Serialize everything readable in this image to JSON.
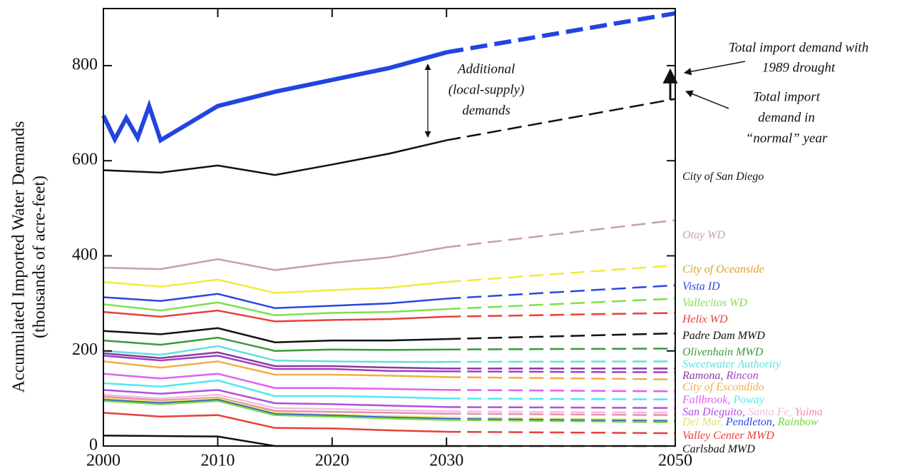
{
  "chart_data": {
    "type": "line",
    "y_label": [
      "Accumulated Imported Water Demands",
      "(thousands of acre-feet)"
    ],
    "xlim": [
      2000,
      2050
    ],
    "ylim": [
      0,
      920
    ],
    "xticks": [
      2000,
      2010,
      2020,
      2030,
      2050
    ],
    "yticks": [
      0,
      200,
      400,
      600,
      800
    ],
    "forecast_from": 2030,
    "name_separator": ", ",
    "annotations": {
      "additional": [
        "Additional",
        "(local-supply)",
        "demands"
      ],
      "drought": [
        "Total import demand with",
        "1989 drought"
      ],
      "normal": [
        "Total import",
        "demand in",
        "“normal” year"
      ]
    },
    "series": [
      {
        "color": "#2244e0",
        "width": 6,
        "x": [
          2000,
          2001,
          2002,
          2003,
          2004,
          2005,
          2010,
          2015,
          2020,
          2025,
          2030,
          2050
        ],
        "values": [
          695,
          645,
          690,
          648,
          715,
          643,
          715,
          745,
          770,
          795,
          828,
          910
        ]
      },
      {
        "name": "City of San Diego",
        "color": "#111111",
        "x": [
          2000,
          2005,
          2010,
          2015,
          2020,
          2025,
          2030,
          2050
        ],
        "values": [
          580,
          575,
          590,
          570,
          592,
          615,
          643,
          730
        ]
      },
      {
        "name": "Otay WD",
        "color": "#c9a0a0",
        "x": [
          2000,
          2005,
          2010,
          2015,
          2020,
          2025,
          2030,
          2050
        ],
        "values": [
          375,
          372,
          393,
          370,
          385,
          397,
          418,
          475
        ]
      },
      {
        "name": "City of Oceanside",
        "color": "#f2e93a",
        "labelColor": "#e0a020",
        "x": [
          2000,
          2005,
          2010,
          2015,
          2020,
          2025,
          2030,
          2050
        ],
        "values": [
          345,
          335,
          350,
          322,
          328,
          333,
          345,
          380
        ]
      },
      {
        "name": "Vista ID",
        "color": "#2a48e0",
        "x": [
          2000,
          2005,
          2010,
          2015,
          2020,
          2025,
          2030,
          2050
        ],
        "values": [
          313,
          305,
          320,
          290,
          295,
          300,
          310,
          338
        ]
      },
      {
        "name": "Vallecitos WD",
        "color": "#7de04a",
        "x": [
          2000,
          2005,
          2010,
          2015,
          2020,
          2025,
          2030,
          2050
        ],
        "values": [
          298,
          285,
          302,
          275,
          280,
          282,
          288,
          310
        ]
      },
      {
        "name": "Helix WD",
        "color": "#e8403a",
        "x": [
          2000,
          2005,
          2010,
          2015,
          2020,
          2025,
          2030,
          2050
        ],
        "values": [
          282,
          272,
          285,
          262,
          265,
          267,
          272,
          280
        ]
      },
      {
        "name": "Padre Dam MWD",
        "color": "#111111",
        "x": [
          2000,
          2005,
          2010,
          2015,
          2020,
          2025,
          2030,
          2050
        ],
        "values": [
          242,
          235,
          248,
          218,
          222,
          222,
          225,
          237
        ]
      },
      {
        "name": "Olivenhain MWD",
        "color": "#3a9a3a",
        "x": [
          2000,
          2005,
          2010,
          2015,
          2020,
          2025,
          2030,
          2050
        ],
        "values": [
          222,
          213,
          228,
          200,
          203,
          202,
          203,
          205
        ]
      },
      {
        "name": "Sweetwater Authority",
        "color": "#60e0e0",
        "x": [
          2000,
          2005,
          2010,
          2015,
          2020,
          2025,
          2030,
          2050
        ],
        "values": [
          200,
          192,
          210,
          180,
          178,
          177,
          177,
          178
        ]
      },
      {
        "name": "Ramona",
        "color": "#8a3aa0",
        "x": [
          2000,
          2005,
          2010,
          2015,
          2020,
          2025,
          2030,
          2050
        ],
        "values": [
          195,
          185,
          197,
          168,
          168,
          165,
          163,
          163
        ]
      },
      {
        "name": "Rincon",
        "color": "#a040c0",
        "x": [
          2000,
          2005,
          2010,
          2015,
          2020,
          2025,
          2030,
          2050
        ],
        "values": [
          190,
          180,
          190,
          162,
          162,
          158,
          157,
          155
        ]
      },
      {
        "name": "City of Escondido",
        "color": "#f0b040",
        "x": [
          2000,
          2005,
          2010,
          2015,
          2020,
          2025,
          2030,
          2050
        ],
        "values": [
          178,
          165,
          178,
          150,
          150,
          148,
          145,
          140
        ]
      },
      {
        "name": "Fallbrook",
        "color": "#e060f0",
        "x": [
          2000,
          2005,
          2010,
          2015,
          2020,
          2025,
          2030,
          2050
        ],
        "values": [
          152,
          142,
          152,
          122,
          122,
          120,
          118,
          115
        ]
      },
      {
        "name": "Poway",
        "color": "#50e8f0",
        "x": [
          2000,
          2005,
          2010,
          2015,
          2020,
          2025,
          2030,
          2050
        ],
        "values": [
          132,
          125,
          138,
          105,
          105,
          103,
          100,
          98
        ]
      },
      {
        "name": "San Dieguito",
        "color": "#b050e0",
        "x": [
          2000,
          2005,
          2010,
          2015,
          2020,
          2025,
          2030,
          2050
        ],
        "values": [
          118,
          110,
          118,
          90,
          88,
          85,
          82,
          80
        ]
      },
      {
        "name": "Santa Fe",
        "color": "#f0c0e0",
        "x": [
          2000,
          2005,
          2010,
          2015,
          2020,
          2025,
          2030,
          2050
        ],
        "values": [
          108,
          100,
          108,
          80,
          78,
          75,
          73,
          70
        ]
      },
      {
        "name": "Yuima",
        "color": "#e890b0",
        "x": [
          2000,
          2005,
          2010,
          2015,
          2020,
          2025,
          2030,
          2050
        ],
        "values": [
          104,
          96,
          102,
          74,
          72,
          70,
          68,
          65
        ]
      },
      {
        "name": "Del Mar",
        "color": "#e8e070",
        "x": [
          2000,
          2005,
          2010,
          2015,
          2020,
          2025,
          2030,
          2050
        ],
        "values": [
          100,
          93,
          100,
          70,
          66,
          63,
          60,
          55
        ]
      },
      {
        "name": "Pendleton",
        "color": "#2a48e0",
        "x": [
          2000,
          2005,
          2010,
          2015,
          2020,
          2025,
          2030,
          2050
        ],
        "values": [
          97,
          90,
          97,
          67,
          64,
          60,
          57,
          52
        ]
      },
      {
        "name": "Rainbow",
        "color": "#70d840",
        "x": [
          2000,
          2005,
          2010,
          2015,
          2020,
          2025,
          2030,
          2050
        ],
        "values": [
          95,
          88,
          95,
          65,
          62,
          58,
          55,
          50
        ]
      },
      {
        "name": "Valley Center MWD",
        "color": "#e8403a",
        "x": [
          2000,
          2005,
          2010,
          2015,
          2020,
          2025,
          2030,
          2050
        ],
        "values": [
          70,
          62,
          65,
          38,
          37,
          33,
          30,
          27
        ]
      },
      {
        "name": "Carlsbad MWD",
        "color": "#111111",
        "x": [
          2000,
          2005,
          2010,
          2015,
          2020,
          2025,
          2030,
          2050
        ],
        "values": [
          22,
          21,
          20,
          0,
          0,
          0,
          0,
          0
        ]
      }
    ]
  }
}
